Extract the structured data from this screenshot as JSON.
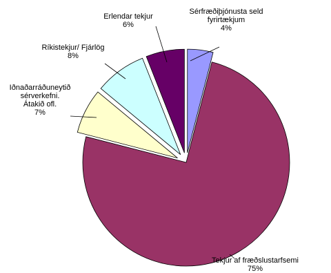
{
  "chart_data": {
    "type": "pie",
    "exploded": true,
    "slices": [
      {
        "name": "Sérfræðiþjónusta seld fyrirtækjum",
        "label_lines": [
          "Sérfræðiþjónusta seld",
          "fyrirtækjum"
        ],
        "value": 4,
        "value_label": "4%",
        "color": "#9999ff"
      },
      {
        "name": "Tekjur af fræðslustarfsemi",
        "label_lines": [
          "Tekjur af fræðslustarfsemi"
        ],
        "value": 75,
        "value_label": "75%",
        "color": "#993366"
      },
      {
        "name": "Iðnaðarráðuneytið sérverkefni. Átakið ofl.",
        "label_lines": [
          "Iðnaðarráðuneytið",
          "sérverkefni.",
          "Átakið ofl."
        ],
        "value": 7,
        "value_label": "7%",
        "color": "#ffffcc"
      },
      {
        "name": "Ríkistekjur/ Fjárlög",
        "label_lines": [
          "Ríkistekjur/ Fjárlög"
        ],
        "value": 8,
        "value_label": "8%",
        "color": "#ccffff"
      },
      {
        "name": "Erlendar tekjur",
        "label_lines": [
          "Erlendar tekjur"
        ],
        "value": 6,
        "value_label": "6%",
        "color": "#660066"
      }
    ],
    "title": "",
    "legend": "none",
    "start_direction": "top",
    "direction": "clockwise"
  }
}
